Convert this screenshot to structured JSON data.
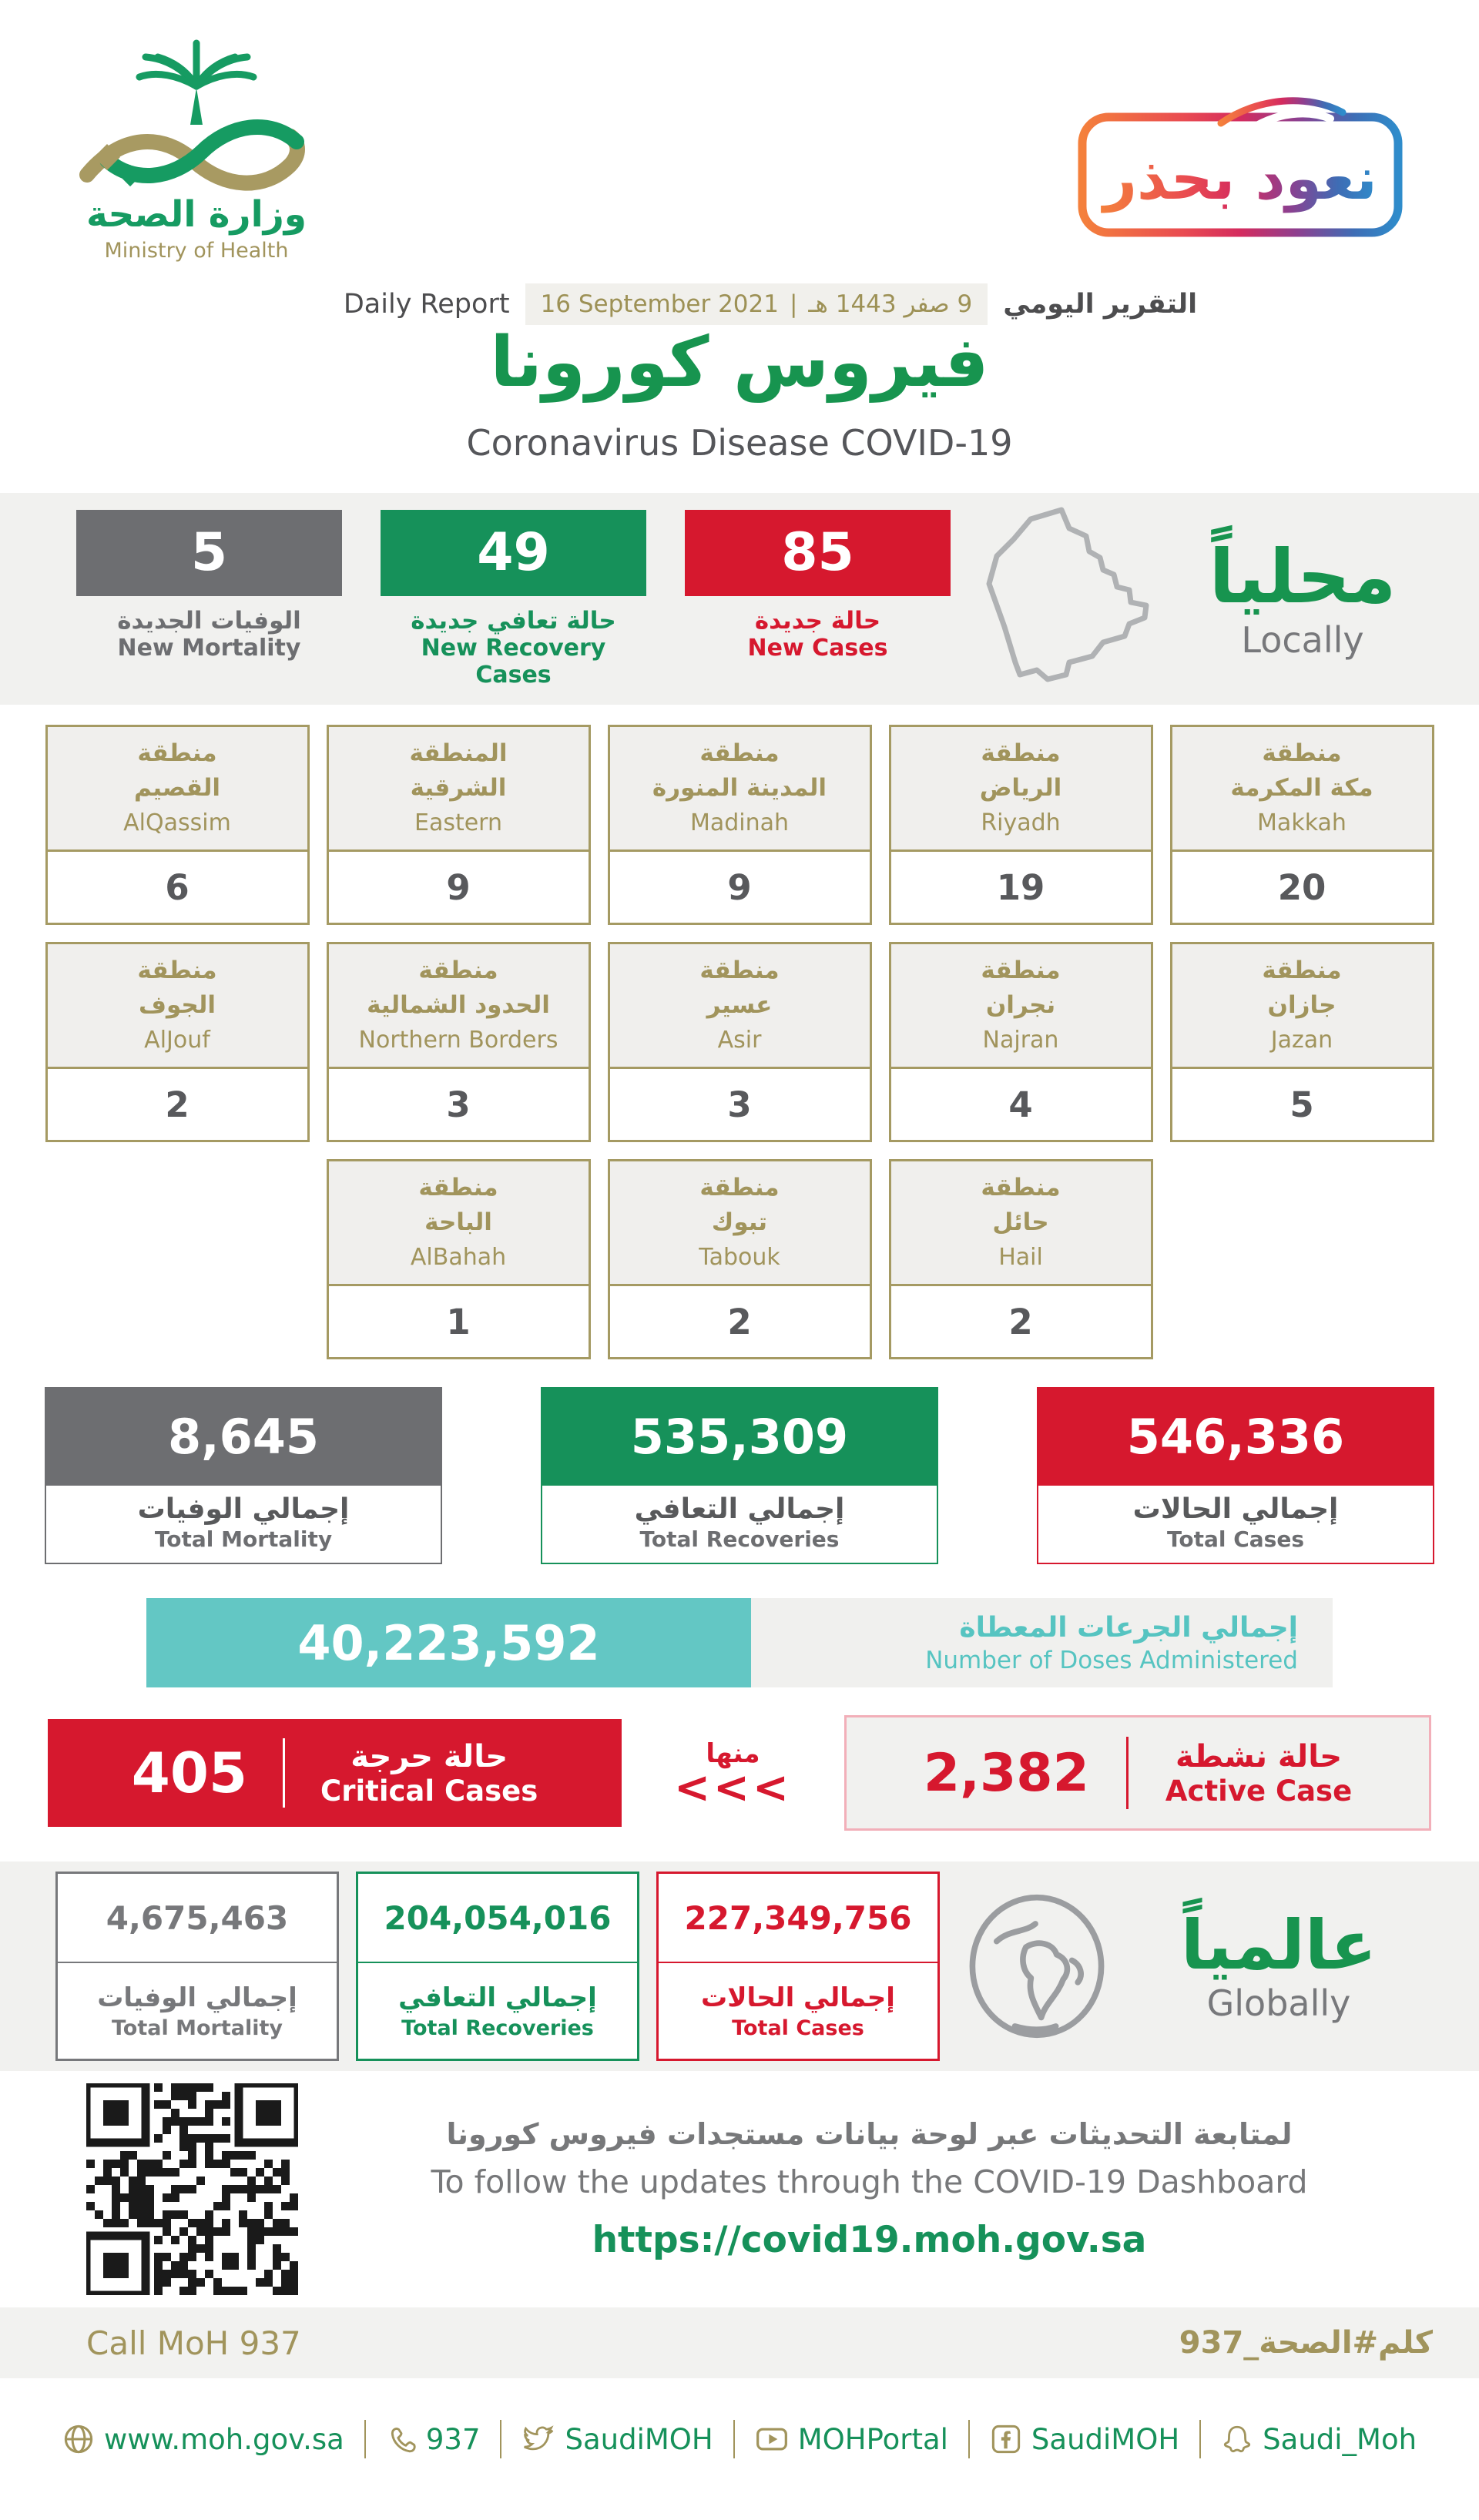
{
  "colors": {
    "green": "#16915a",
    "red": "#d6182e",
    "gray": "#6d6e71",
    "gold": "#a1945c",
    "teal": "#63c7c4",
    "dark": "#58595b"
  },
  "header": {
    "logo": {
      "arabic": "وزارة الصحة",
      "english": "Ministry of Health"
    },
    "badge": "نعود بحذر",
    "report": {
      "daily_en": "Daily Report",
      "date_gregorian": "16 September 2021",
      "separator": "|",
      "date_hijri": "9 صفر 1443 هـ",
      "daily_ar": "التقرير اليومي"
    },
    "title_ar": "فيروس كورونا",
    "title_en": "Coronavirus Disease COVID-19"
  },
  "locally": {
    "title_ar": "محلياً",
    "title_en": "Locally",
    "stats": [
      {
        "value": "85",
        "label_ar": "حالة جديدة",
        "label_en": "New Cases",
        "color": "#d6182e"
      },
      {
        "value": "49",
        "label_ar": "حالة تعافي جديدة",
        "label_en": "New Recovery Cases",
        "color": "#16915a"
      },
      {
        "value": "5",
        "label_ar": "الوفيات الجديدة",
        "label_en": "New Mortality",
        "color": "#6d6e71"
      }
    ]
  },
  "regions": {
    "row1": [
      {
        "ar1": "منطقة",
        "ar2": "مكة المكرمة",
        "en": "Makkah",
        "value": "20"
      },
      {
        "ar1": "منطقة",
        "ar2": "الرياض",
        "en": "Riyadh",
        "value": "19"
      },
      {
        "ar1": "منطقة",
        "ar2": "المدينة المنورة",
        "en": "Madinah",
        "value": "9"
      },
      {
        "ar1": "المنطقة",
        "ar2": "الشرقية",
        "en": "Eastern",
        "value": "9"
      },
      {
        "ar1": "منطقة",
        "ar2": "القصيم",
        "en": "AlQassim",
        "value": "6"
      }
    ],
    "row2": [
      {
        "ar1": "منطقة",
        "ar2": "جازان",
        "en": "Jazan",
        "value": "5"
      },
      {
        "ar1": "منطقة",
        "ar2": "نجران",
        "en": "Najran",
        "value": "4"
      },
      {
        "ar1": "منطقة",
        "ar2": "عسير",
        "en": "Asir",
        "value": "3"
      },
      {
        "ar1": "منطقة",
        "ar2": "الحدود الشمالية",
        "en": "Northern Borders",
        "value": "3"
      },
      {
        "ar1": "منطقة",
        "ar2": "الجوف",
        "en": "AlJouf",
        "value": "2"
      }
    ],
    "row3": [
      {
        "ar1": "منطقة",
        "ar2": "حائل",
        "en": "Hail",
        "value": "2"
      },
      {
        "ar1": "منطقة",
        "ar2": "تبوك",
        "en": "Tabouk",
        "value": "2"
      },
      {
        "ar1": "منطقة",
        "ar2": "الباحة",
        "en": "AlBahah",
        "value": "1"
      }
    ]
  },
  "totals": [
    {
      "value": "8,645",
      "label_ar": "إجمالي الوفيات",
      "label_en": "Total Mortality",
      "color": "#6d6e71"
    },
    {
      "value": "535,309",
      "label_ar": "إجمالي التعافي",
      "label_en": "Total Recoveries",
      "color": "#16915a"
    },
    {
      "value": "546,336",
      "label_ar": "إجمالي الحالات",
      "label_en": "Total Cases",
      "color": "#d6182e"
    }
  ],
  "doses": {
    "value": "40,223,592",
    "label_ar": "إجمالي الجرعات المعطاة",
    "label_en": "Number of Doses Administered"
  },
  "critical": {
    "value": "405",
    "label_ar": "حالة حرجة",
    "label_en": "Critical Cases"
  },
  "minha": {
    "label_ar": "منها",
    "chevrons": "<<<"
  },
  "active": {
    "value": "2,382",
    "label_ar": "حالة نشطة",
    "label_en": "Active Case"
  },
  "globally": {
    "title_ar": "عالمياً",
    "title_en": "Globally",
    "cards": [
      {
        "value": "4,675,463",
        "label_ar": "إجمالي الوفيات",
        "label_en": "Total Mortality",
        "color": "#77787b"
      },
      {
        "value": "204,054,016",
        "label_ar": "إجمالي التعافي",
        "label_en": "Total Recoveries",
        "color": "#16915a"
      },
      {
        "value": "227,349,756",
        "label_ar": "إجمالي الحالات",
        "label_en": "Total Cases",
        "color": "#d6182e"
      }
    ]
  },
  "dashboard": {
    "note_ar": "لمتابعة التحديثات عبر لوحة بيانات مستجدات فيروس كورونا",
    "note_en": "To follow the updates through the COVID-19 Dashboard",
    "url": "https://covid19.moh.gov.sa"
  },
  "footer": {
    "call": "Call MoH 937",
    "hashtag": "كلم#الصحة_937",
    "links": [
      {
        "icon": "globe",
        "label": "www.moh.gov.sa"
      },
      {
        "icon": "phone",
        "label": "937"
      },
      {
        "icon": "twitter",
        "label": "SaudiMOH"
      },
      {
        "icon": "youtube",
        "label": "MOHPortal"
      },
      {
        "icon": "facebook",
        "label": "SaudiMOH"
      },
      {
        "icon": "snapchat",
        "label": "Saudi_Moh"
      }
    ]
  }
}
